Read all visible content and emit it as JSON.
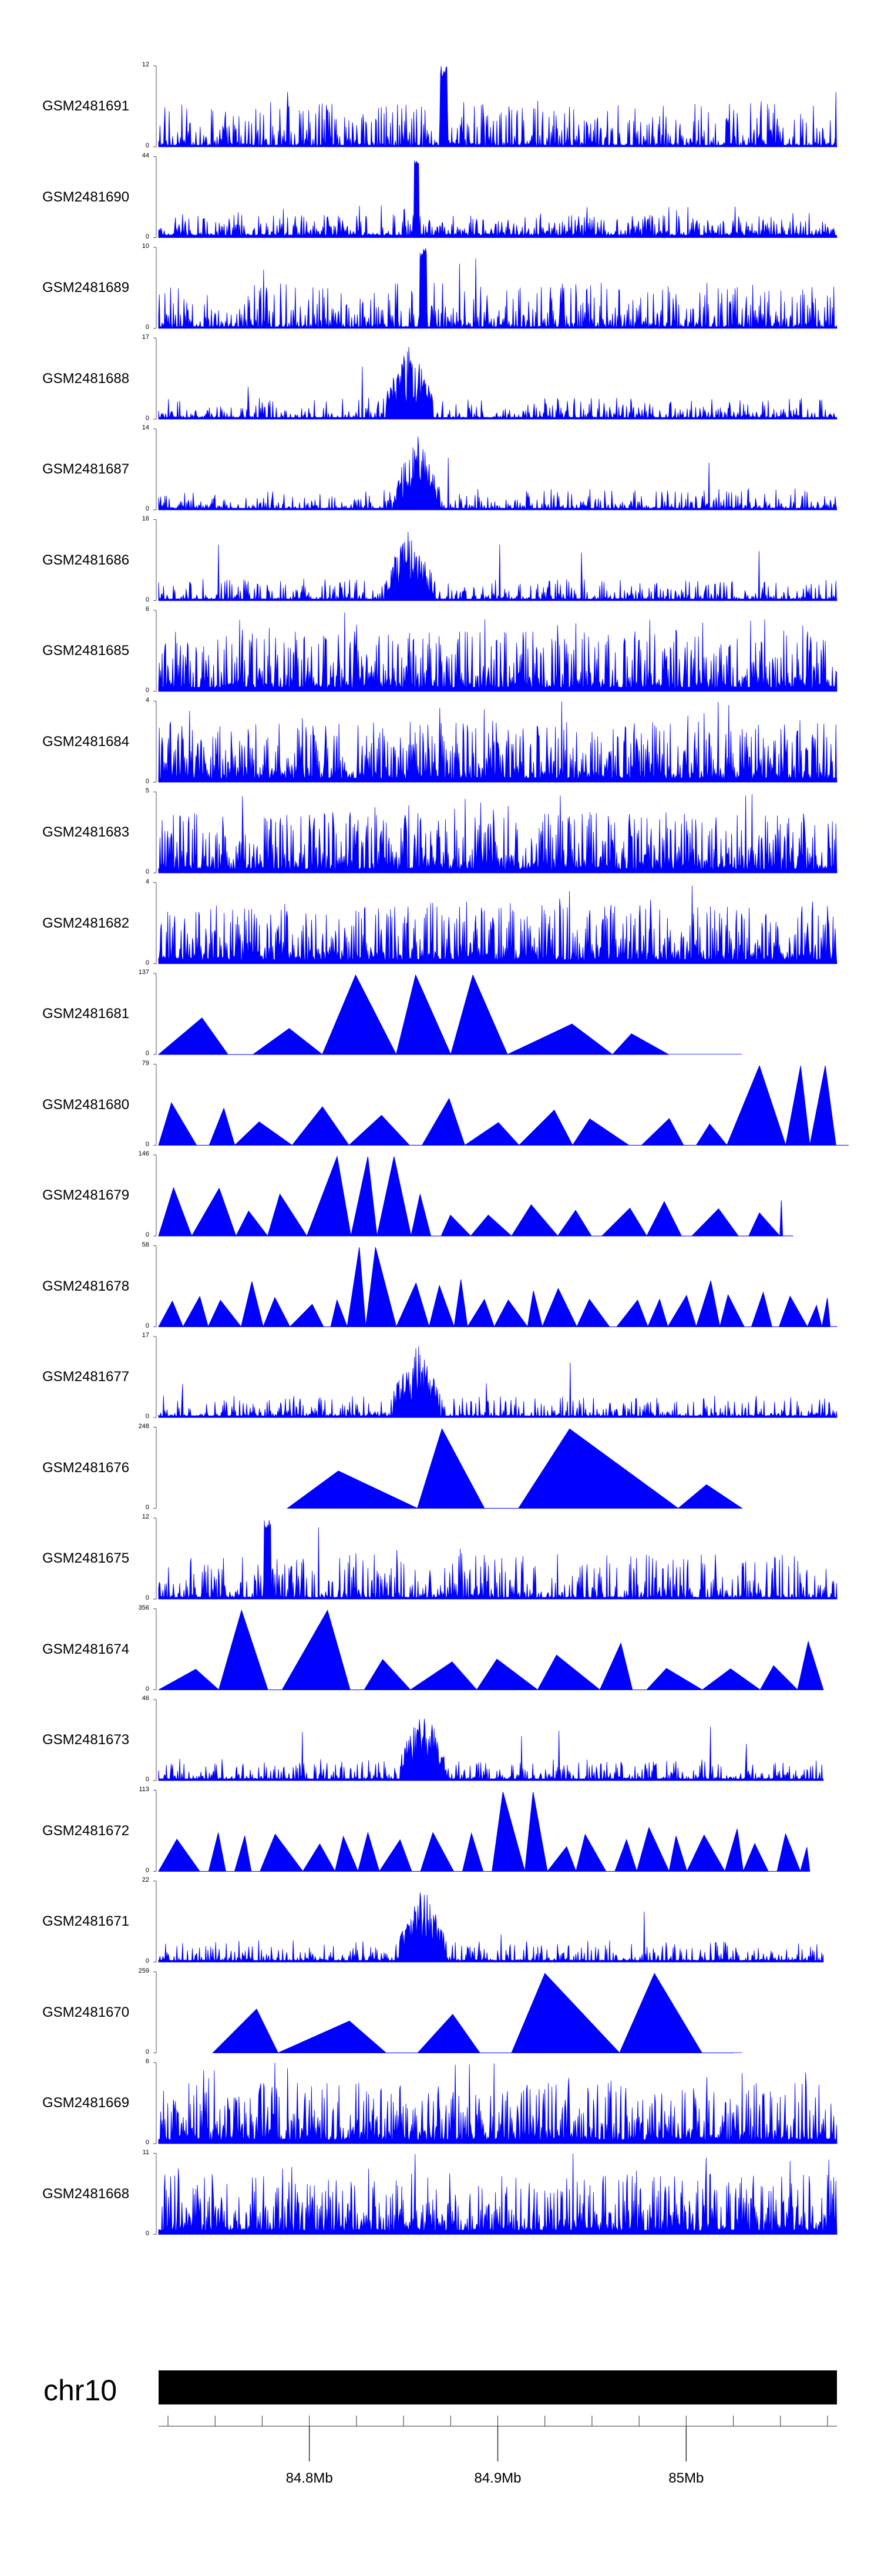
{
  "chart_data": {
    "type": "area",
    "title": "",
    "chromosome": "chr10",
    "x_range_mb": [
      84.72,
      85.08
    ],
    "genome_axis": {
      "ticks": [
        {
          "pos": 84.8,
          "label": "84.8Mb"
        },
        {
          "pos": 84.9,
          "label": "84.9Mb"
        },
        {
          "pos": 85.0,
          "label": "85Mb"
        }
      ],
      "minor_step_mb": 0.025
    },
    "fill_color": "#0000ff",
    "tracks": [
      {
        "name": "GSM2481691",
        "ymax": 12,
        "style": "spiky",
        "hotspot": 0.42,
        "end": 1.0
      },
      {
        "name": "GSM2481690",
        "ymax": 44,
        "style": "mixed",
        "hotspot": 0.38,
        "end": 1.0
      },
      {
        "name": "GSM2481689",
        "ymax": 10,
        "style": "spiky",
        "hotspot": 0.39,
        "end": 1.0
      },
      {
        "name": "GSM2481688",
        "ymax": 17,
        "style": "peaks",
        "hotspot": 0.37,
        "end": 1.0
      },
      {
        "name": "GSM2481687",
        "ymax": 14,
        "style": "peaks",
        "hotspot": 0.38,
        "end": 1.0
      },
      {
        "name": "GSM2481686",
        "ymax": 16,
        "style": "peaks",
        "hotspot": 0.37,
        "end": 1.0
      },
      {
        "name": "GSM2481685",
        "ymax": 6,
        "style": "dense",
        "hotspot": 0.7,
        "end": 1.0
      },
      {
        "name": "GSM2481684",
        "ymax": 4,
        "style": "dense",
        "hotspot": 0.73,
        "end": 1.0
      },
      {
        "name": "GSM2481683",
        "ymax": 5,
        "style": "dense",
        "hotspot": 0.6,
        "end": 1.0
      },
      {
        "name": "GSM2481682",
        "ymax": 4,
        "style": "dense",
        "hotspot": 0.35,
        "end": 1.0
      },
      {
        "name": "GSM2481681",
        "ymax": 137,
        "style": "triangles",
        "hotspot": 0.39,
        "end": 0.86,
        "tri_count": 7
      },
      {
        "name": "GSM2481680",
        "ymax": 79,
        "style": "triangles",
        "hotspot": 0.95,
        "end": 1.0,
        "tri_count": 16
      },
      {
        "name": "GSM2481679",
        "ymax": 146,
        "style": "triangles",
        "hotspot": 0.3,
        "end": 0.92,
        "tri_count": 18
      },
      {
        "name": "GSM2481678",
        "ymax": 58,
        "style": "triangles",
        "hotspot": 0.33,
        "end": 0.99,
        "tri_count": 28
      },
      {
        "name": "GSM2481677",
        "ymax": 17,
        "style": "peaks",
        "hotspot": 0.38,
        "end": 1.0
      },
      {
        "name": "GSM2481676",
        "ymax": 248,
        "style": "triangles",
        "hotspot": 0.58,
        "end": 0.86,
        "tri_count": 4,
        "start": 0.19
      },
      {
        "name": "GSM2481675",
        "ymax": 12,
        "style": "spiky",
        "hotspot": 0.16,
        "end": 1.0
      },
      {
        "name": "GSM2481674",
        "ymax": 356,
        "style": "triangles",
        "hotspot": 0.2,
        "end": 0.98,
        "tri_count": 14
      },
      {
        "name": "GSM2481673",
        "ymax": 46,
        "style": "peaks",
        "hotspot": 0.39,
        "end": 0.98
      },
      {
        "name": "GSM2481672",
        "ymax": 113,
        "style": "triangles",
        "hotspot": 0.52,
        "end": 0.96,
        "tri_count": 22
      },
      {
        "name": "GSM2481671",
        "ymax": 22,
        "style": "peaks",
        "hotspot": 0.39,
        "end": 0.98
      },
      {
        "name": "GSM2481670",
        "ymax": 259,
        "style": "triangles",
        "hotspot": 0.67,
        "end": 0.86,
        "tri_count": 5,
        "start": 0.08
      },
      {
        "name": "GSM2481669",
        "ymax": 6,
        "style": "dense",
        "hotspot": 0.49,
        "end": 1.0
      },
      {
        "name": "GSM2481668",
        "ymax": 11,
        "style": "dense",
        "hotspot": 0.3,
        "end": 1.0
      }
    ]
  }
}
